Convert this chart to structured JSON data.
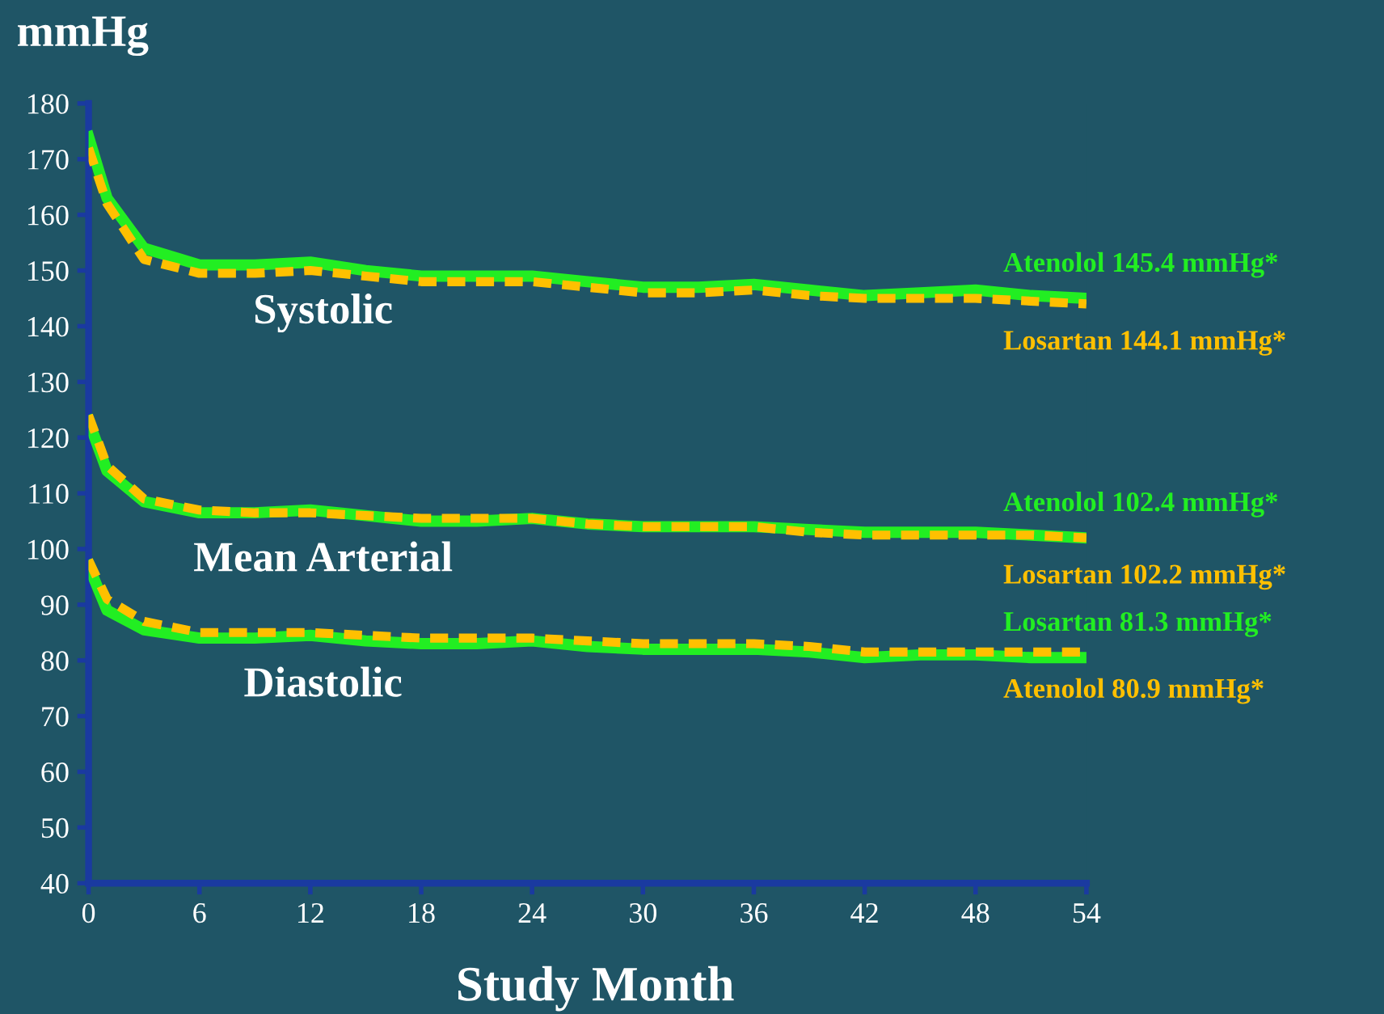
{
  "chart_data": {
    "type": "line",
    "ylabel": "mmHg",
    "xlabel": "Study Month",
    "x": [
      0,
      1,
      3,
      6,
      9,
      12,
      15,
      18,
      21,
      24,
      27,
      30,
      33,
      36,
      39,
      42,
      45,
      48,
      51,
      54
    ],
    "xlim": [
      0,
      54
    ],
    "xticks": [
      0,
      6,
      12,
      18,
      24,
      30,
      36,
      42,
      48,
      54
    ],
    "ylim": [
      40,
      180
    ],
    "yticks": [
      40,
      50,
      60,
      70,
      80,
      90,
      100,
      110,
      120,
      130,
      140,
      150,
      160,
      170,
      180
    ],
    "grid": false,
    "legend": false,
    "marker": "none",
    "series": [
      {
        "name": "Atenolol 145.4 mmHg*",
        "color": "#22ee22",
        "line_style": "solid",
        "values": [
          174,
          163,
          154,
          151,
          151,
          151.5,
          150,
          149,
          149,
          149,
          148,
          147,
          147,
          147.5,
          146.5,
          145.5,
          146,
          146.5,
          145.5,
          145
        ]
      },
      {
        "name": "Losartan 144.1 mmHg*",
        "color": "#ffc000",
        "line_style": "dashed",
        "values": [
          172,
          162,
          152,
          149.5,
          149.5,
          150,
          149,
          148,
          148,
          148,
          147,
          146,
          146,
          146.5,
          145.5,
          145,
          145,
          145,
          144.5,
          144
        ]
      },
      {
        "name": "Atenolol 102.4 mmHg*",
        "color": "#22ee22",
        "line_style": "solid",
        "values": [
          123,
          114,
          108.5,
          106.5,
          106.5,
          107,
          106,
          105,
          105,
          105.5,
          104.5,
          104,
          104,
          104,
          103.5,
          103,
          103,
          103,
          102.5,
          102
        ]
      },
      {
        "name": "Losartan 102.2 mmHg*",
        "color": "#ffc000",
        "line_style": "dashed",
        "values": [
          124,
          115,
          109,
          107,
          106.5,
          106.5,
          106,
          105.5,
          105.5,
          105.5,
          104.5,
          104,
          104,
          104,
          103,
          102.5,
          102.5,
          102.5,
          102.5,
          102
        ]
      },
      {
        "name": "Losartan 81.3 mmHg*",
        "color": "#22ee22",
        "line_style": "solid",
        "values": [
          97,
          89,
          85.5,
          84,
          84,
          84.5,
          83.5,
          83,
          83,
          83.5,
          82.5,
          82,
          82,
          82,
          81.5,
          80.5,
          81,
          81,
          80.5,
          80.5
        ]
      },
      {
        "name": "Atenolol 80.9 mmHg*",
        "color": "#ffc000",
        "line_style": "dashed",
        "values": [
          98,
          91,
          87,
          85,
          85,
          85,
          84.5,
          84,
          84,
          84,
          83.5,
          83,
          83,
          83,
          82.5,
          81.5,
          81.5,
          81.5,
          81.5,
          81.5
        ]
      }
    ],
    "annotations": [
      "Systolic",
      "Mean Arterial",
      "Diastolic"
    ]
  }
}
